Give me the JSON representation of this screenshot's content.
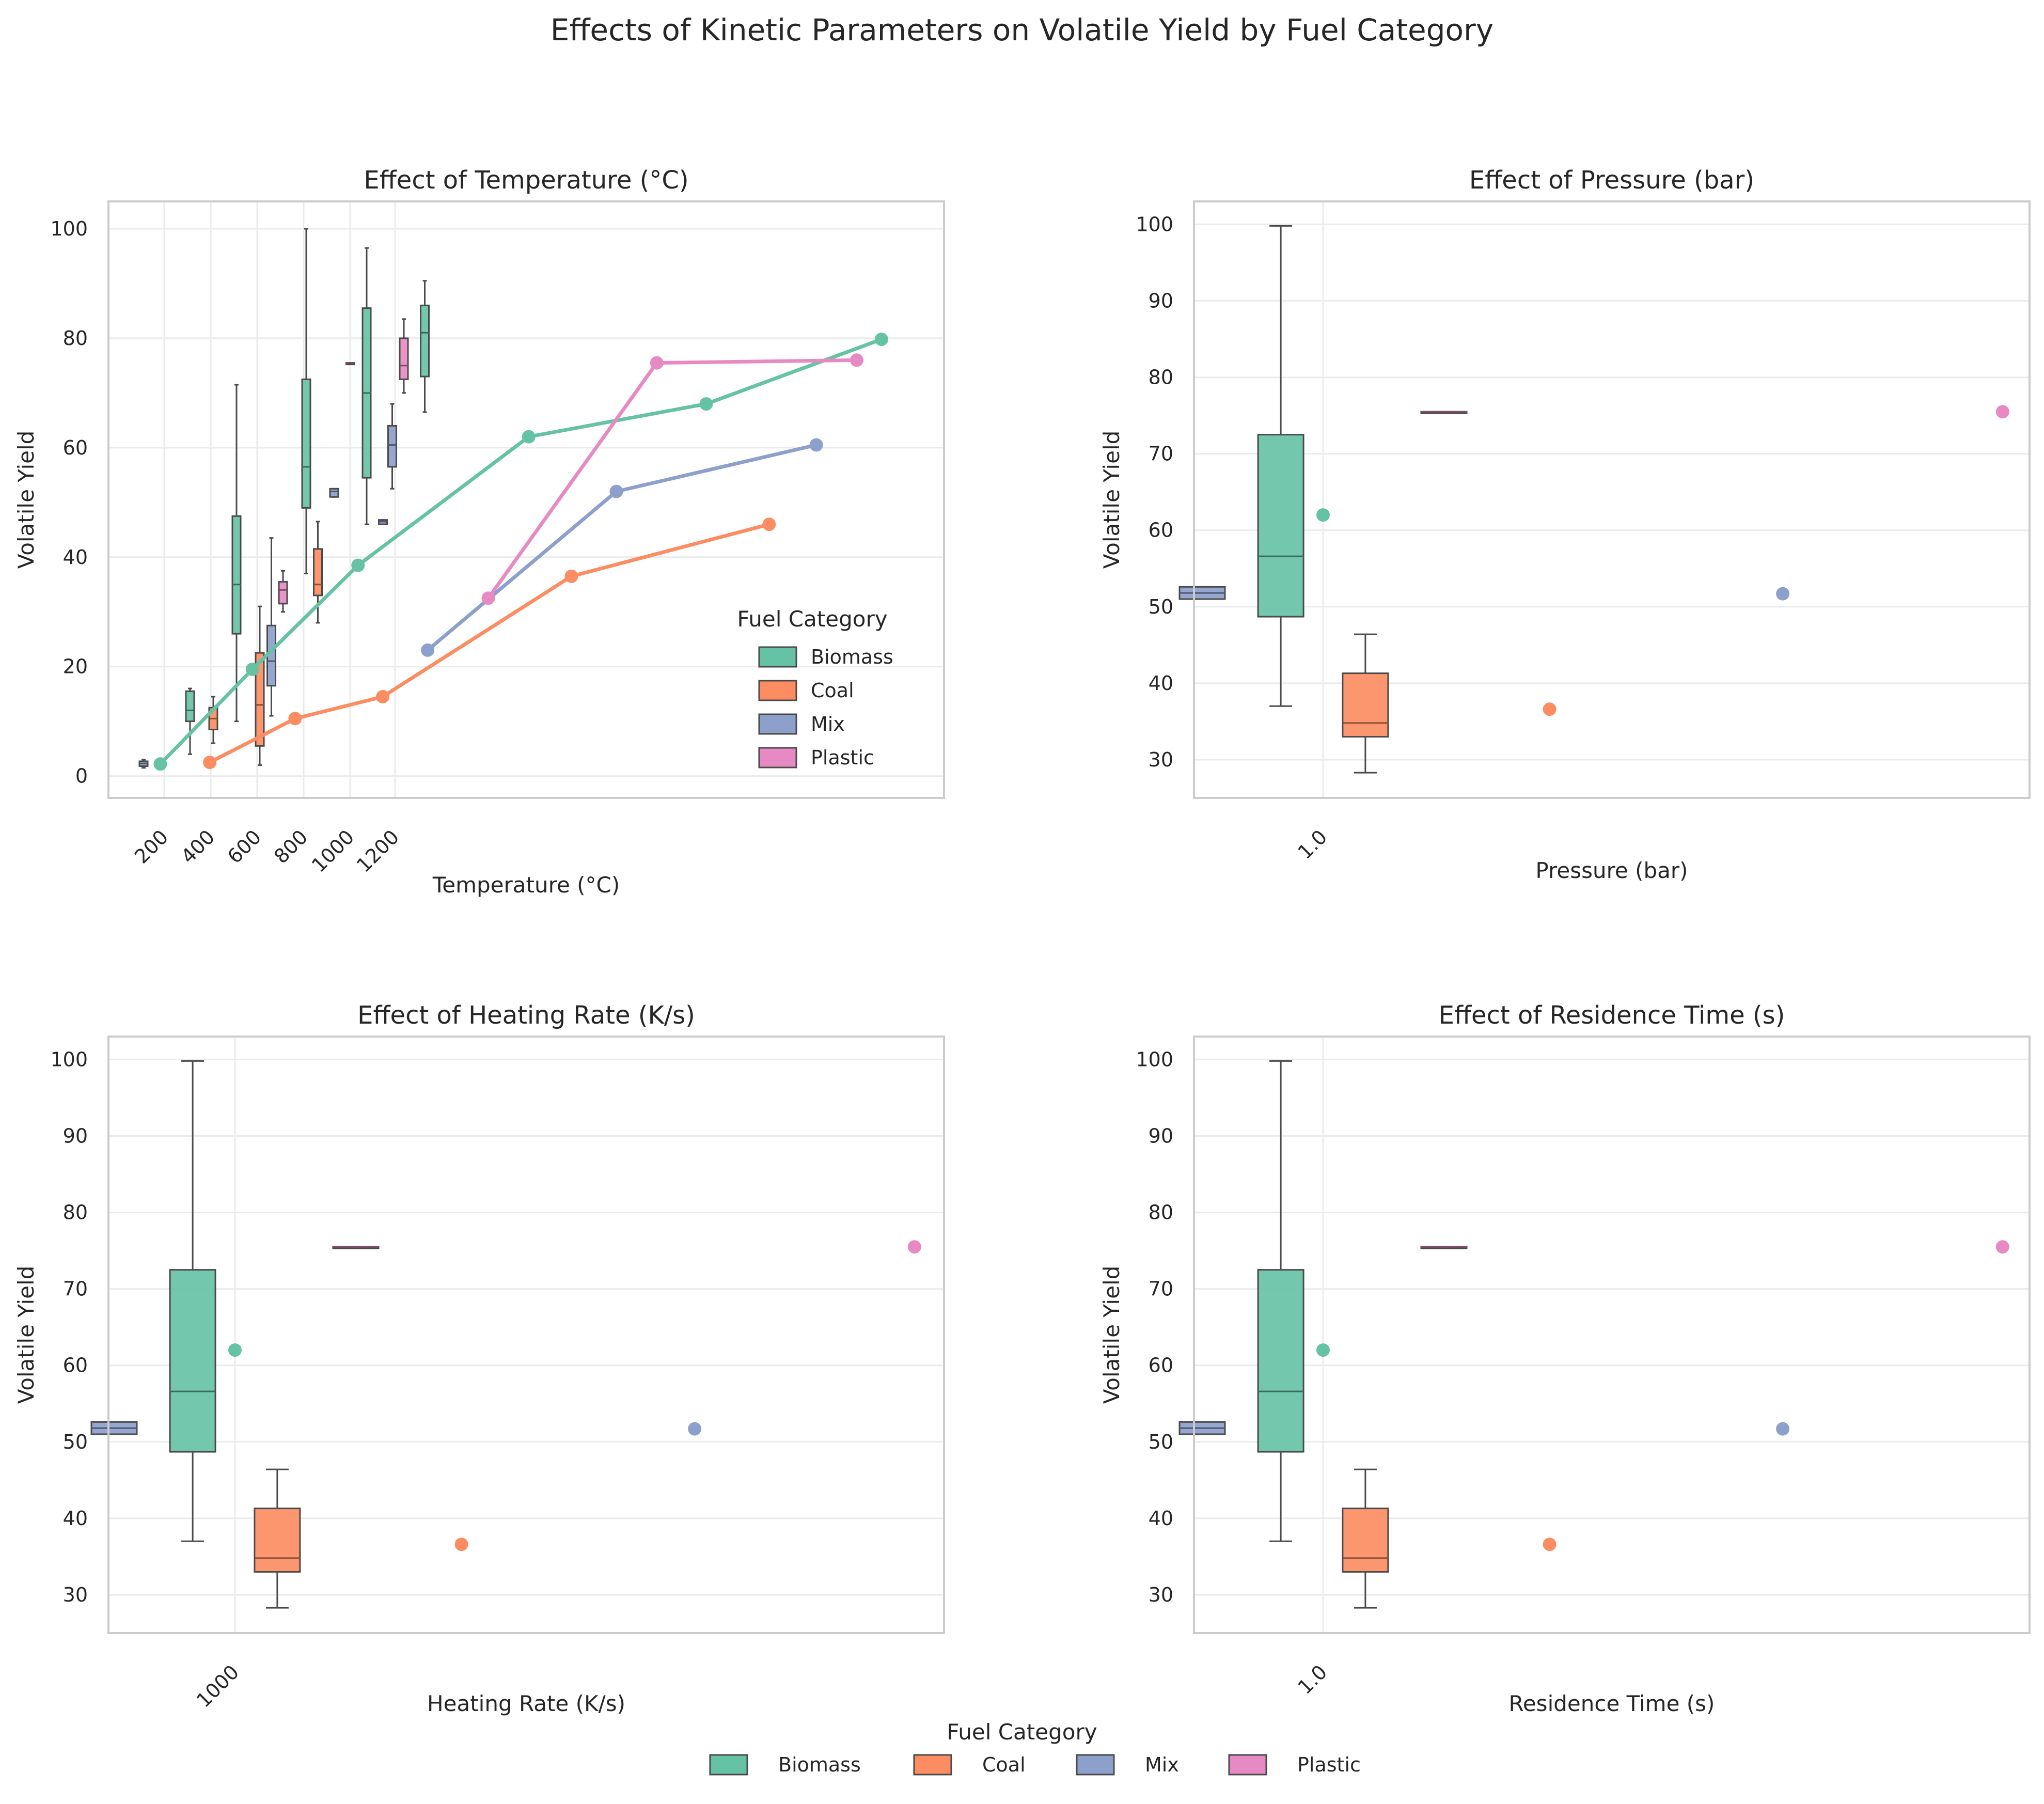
{
  "figure": {
    "title": "Effects of Kinetic Parameters on Volatile Yield by Fuel Category",
    "legend_title": "Fuel Category"
  },
  "colors": {
    "Biomass": "#66c2a5",
    "Coal": "#fc8d62",
    "Mix": "#8da0cb",
    "Plastic": "#e78ac3"
  },
  "chart_data": [
    {
      "type": "box+line",
      "title": "Effect of Temperature (°C)",
      "xlabel": "Temperature (°C)",
      "ylabel": "Volatile Yield",
      "xtick_labels": [
        "200",
        "400",
        "600",
        "800",
        "1000",
        "1200"
      ],
      "ylim": [
        -4,
        105
      ],
      "yticks": [
        0,
        20,
        40,
        60,
        80,
        100
      ],
      "grid": true,
      "legend": {
        "placement": "lower-right",
        "entries": [
          "Biomass",
          "Coal",
          "Mix",
          "Plastic"
        ]
      },
      "boxes": [
        {
          "series": "Mix",
          "slot": 0,
          "q1": 1.8,
          "median": 2.3,
          "q3": 2.7,
          "min": 1.5,
          "max": 3.0
        },
        {
          "series": "Biomass",
          "slot": 1,
          "q1": 10.0,
          "median": 12.0,
          "q3": 15.5,
          "min": 4.0,
          "max": 16.0
        },
        {
          "series": "Coal",
          "slot": 1.5,
          "q1": 8.5,
          "median": 10.5,
          "q3": 12.5,
          "min": 6.0,
          "max": 14.5
        },
        {
          "series": "Biomass",
          "slot": 2,
          "q1": 26.0,
          "median": 35.0,
          "q3": 47.5,
          "min": 10.0,
          "max": 71.5
        },
        {
          "series": "Coal",
          "slot": 2.5,
          "q1": 5.5,
          "median": 13.0,
          "q3": 22.5,
          "min": 2.0,
          "max": 31.0
        },
        {
          "series": "Mix",
          "slot": 2.75,
          "q1": 16.5,
          "median": 21.0,
          "q3": 27.5,
          "min": 11.0,
          "max": 43.5
        },
        {
          "series": "Plastic",
          "slot": 3.0,
          "q1": 31.5,
          "median": 34.0,
          "q3": 35.5,
          "min": 30.0,
          "max": 37.5
        },
        {
          "series": "Biomass",
          "slot": 3.5,
          "q1": 49.0,
          "median": 56.5,
          "q3": 72.5,
          "min": 37.0,
          "max": 100.0
        },
        {
          "series": "Coal",
          "slot": 3.75,
          "q1": 33.0,
          "median": 35.0,
          "q3": 41.5,
          "min": 28.0,
          "max": 46.5
        },
        {
          "series": "Mix",
          "slot": 4.1,
          "q1": 51.0,
          "median": 52.0,
          "q3": 52.5,
          "min": 51.0,
          "max": 52.5
        },
        {
          "series": "Plastic",
          "slot": 4.45,
          "q1": 75.5,
          "median": 75.5,
          "q3": 75.5,
          "min": 75.5,
          "max": 75.5
        },
        {
          "series": "Biomass",
          "slot": 4.8,
          "q1": 54.5,
          "median": 70.0,
          "q3": 85.5,
          "min": 46.0,
          "max": 96.5
        },
        {
          "series": "Mix",
          "slot": 5.15,
          "q1": 46.0,
          "median": 46.5,
          "q3": 46.8,
          "min": 46.0,
          "max": 46.8
        },
        {
          "series": "Mix",
          "slot": 5.35,
          "q1": 56.5,
          "median": 60.5,
          "q3": 64.0,
          "min": 52.5,
          "max": 68.0
        },
        {
          "series": "Plastic",
          "slot": 5.6,
          "q1": 72.5,
          "median": 75.0,
          "q3": 80.0,
          "min": 70.0,
          "max": 83.5
        },
        {
          "series": "Biomass",
          "slot": 6.05,
          "q1": 73.0,
          "median": 81.0,
          "q3": 86.0,
          "min": 66.5,
          "max": 90.5
        }
      ],
      "lines": [
        {
          "name": "Biomass",
          "points": [
            [
              0.35,
              2.2
            ],
            [
              2.4,
              19.5
            ],
            [
              4.75,
              38.5
            ],
            [
              8.55,
              62.0
            ],
            [
              12.5,
              68.0
            ],
            [
              16.4,
              79.8
            ]
          ]
        },
        {
          "name": "Coal",
          "points": [
            [
              1.45,
              2.5
            ],
            [
              3.35,
              10.5
            ],
            [
              5.3,
              14.5
            ],
            [
              9.5,
              36.5
            ],
            [
              13.9,
              46.0
            ]
          ]
        },
        {
          "name": "Mix",
          "points": [
            [
              6.3,
              23.0
            ],
            [
              10.5,
              52.0
            ],
            [
              14.95,
              60.5
            ]
          ]
        },
        {
          "name": "Plastic",
          "points": [
            [
              7.65,
              32.5
            ],
            [
              11.4,
              75.5
            ],
            [
              15.85,
              76.0
            ]
          ]
        }
      ]
    },
    {
      "type": "box+scatter",
      "title": "Effect of Pressure (bar)",
      "xlabel": "Pressure (bar)",
      "ylabel": "Volatile Yield",
      "xtick_labels": [
        "1.0"
      ],
      "ylim": [
        25,
        103
      ],
      "yticks": [
        30,
        40,
        50,
        60,
        70,
        80,
        90,
        100
      ],
      "grid": true,
      "boxes": [
        {
          "series": "Mix",
          "slot": -1.0,
          "q1": 51.0,
          "median": 51.8,
          "q3": 52.6,
          "min": 51.0,
          "max": 52.6
        },
        {
          "series": "Biomass",
          "slot": -0.35,
          "q1": 48.7,
          "median": 56.6,
          "q3": 72.5,
          "min": 37.0,
          "max": 99.8
        },
        {
          "series": "Coal",
          "slot": 0.35,
          "q1": 33.0,
          "median": 34.8,
          "q3": 41.3,
          "min": 28.3,
          "max": 46.4
        },
        {
          "series": "Plastic",
          "slot": 1.0,
          "q1": 75.5,
          "median": 75.5,
          "q3": 75.5,
          "min": 75.5,
          "max": 75.5
        }
      ],
      "points": [
        {
          "series": "Biomass",
          "x": 0.0,
          "y": 62.0
        },
        {
          "series": "Coal",
          "x": 3.4,
          "y": 36.6
        },
        {
          "series": "Mix",
          "x": 6.9,
          "y": 51.7
        },
        {
          "series": "Plastic",
          "x": 10.2,
          "y": 75.5
        }
      ]
    },
    {
      "type": "box+scatter",
      "title": "Effect of Heating Rate (K/s)",
      "xlabel": "Heating Rate (K/s)",
      "ylabel": "Volatile Yield",
      "xtick_labels": [
        "1000"
      ],
      "ylim": [
        25,
        103
      ],
      "yticks": [
        30,
        40,
        50,
        60,
        70,
        80,
        90,
        100
      ],
      "grid": true,
      "boxes": [
        {
          "series": "Mix",
          "slot": -1.0,
          "q1": 51.0,
          "median": 51.8,
          "q3": 52.6,
          "min": 51.0,
          "max": 52.6
        },
        {
          "series": "Biomass",
          "slot": -0.35,
          "q1": 48.7,
          "median": 56.6,
          "q3": 72.5,
          "min": 37.0,
          "max": 99.8
        },
        {
          "series": "Coal",
          "slot": 0.35,
          "q1": 33.0,
          "median": 34.8,
          "q3": 41.3,
          "min": 28.3,
          "max": 46.4
        },
        {
          "series": "Plastic",
          "slot": 1.0,
          "q1": 75.5,
          "median": 75.5,
          "q3": 75.5,
          "min": 75.5,
          "max": 75.5
        }
      ],
      "points": [
        {
          "series": "Biomass",
          "x": 0.0,
          "y": 62.0
        },
        {
          "series": "Coal",
          "x": 3.4,
          "y": 36.6
        },
        {
          "series": "Mix",
          "x": 6.9,
          "y": 51.7
        },
        {
          "series": "Plastic",
          "x": 10.2,
          "y": 75.5
        }
      ]
    },
    {
      "type": "box+scatter",
      "title": "Effect of Residence Time (s)",
      "xlabel": "Residence Time (s)",
      "ylabel": "Volatile Yield",
      "xtick_labels": [
        "1.0"
      ],
      "ylim": [
        25,
        103
      ],
      "yticks": [
        30,
        40,
        50,
        60,
        70,
        80,
        90,
        100
      ],
      "grid": true,
      "boxes": [
        {
          "series": "Mix",
          "slot": -1.0,
          "q1": 51.0,
          "median": 51.8,
          "q3": 52.6,
          "min": 51.0,
          "max": 52.6
        },
        {
          "series": "Biomass",
          "slot": -0.35,
          "q1": 48.7,
          "median": 56.6,
          "q3": 72.5,
          "min": 37.0,
          "max": 99.8
        },
        {
          "series": "Coal",
          "slot": 0.35,
          "q1": 33.0,
          "median": 34.8,
          "q3": 41.3,
          "min": 28.3,
          "max": 46.4
        },
        {
          "series": "Plastic",
          "slot": 1.0,
          "q1": 75.5,
          "median": 75.5,
          "q3": 75.5,
          "min": 75.5,
          "max": 75.5
        }
      ],
      "points": [
        {
          "series": "Biomass",
          "x": 0.0,
          "y": 62.0
        },
        {
          "series": "Coal",
          "x": 3.4,
          "y": 36.6
        },
        {
          "series": "Mix",
          "x": 6.9,
          "y": 51.7
        },
        {
          "series": "Plastic",
          "x": 10.2,
          "y": 75.5
        }
      ]
    }
  ]
}
